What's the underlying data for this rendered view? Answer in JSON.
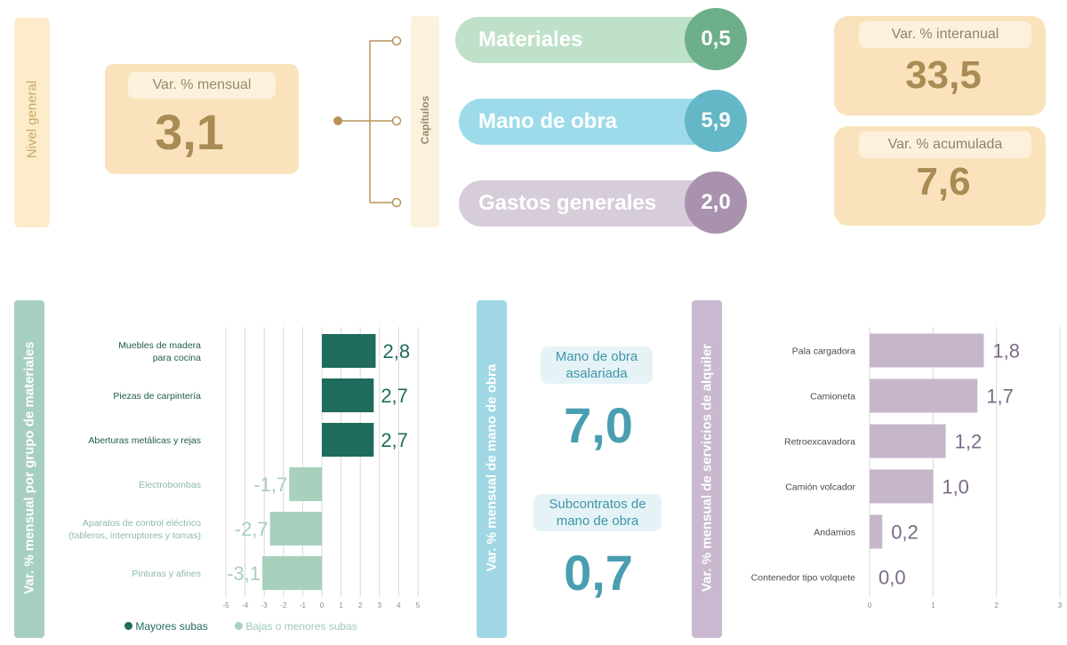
{
  "nivel_general": {
    "label": "Nivel general",
    "mensual_label": "Var. % mensual",
    "mensual_value": "3,1"
  },
  "capitulos": {
    "label": "Capítulos",
    "items": [
      {
        "label": "Materiales",
        "value": "0,5"
      },
      {
        "label": "Mano de obra",
        "value": "5,9"
      },
      {
        "label": "Gastos generales",
        "value": "2,0"
      }
    ]
  },
  "interanual": {
    "label": "Var. % interanual",
    "value": "33,5"
  },
  "acumulada": {
    "label": "Var. % acumulada",
    "value": "7,6"
  },
  "colors": {
    "materiales": "#bfe0c9",
    "materiales_circle": "#6daf8b",
    "mano_obra": "#9edbea",
    "mano_obra_circle": "#63b7c6",
    "gastos": "#d7ccd9",
    "gastos_circle": "#a892ad",
    "mayores": "#1f6b5c",
    "menores": "#a7d0bd",
    "alquiler": "#c6b6cc"
  },
  "materials_band_label": "Var. % mensual por grupo de materiales",
  "labor": {
    "band_label": "Var. % mensual de mano de obra",
    "items": [
      {
        "label": "Mano de obra asalariada",
        "value": "7,0"
      },
      {
        "label": "Subcontratos de mano de obra",
        "value": "0,7"
      }
    ]
  },
  "rental_band_label": "Var. % mensual de servicios de alquiler",
  "chart_data": [
    {
      "type": "bar",
      "orientation": "horizontal",
      "categories": [
        "Muebles de madera para cocina",
        "Piezas de carpintería",
        "Aberturas metálicas y rejas",
        "Electrobombas",
        "Aparatos de control eléctrico (tableros, interruptores y tomas)",
        "Pinturas y afines"
      ],
      "category_lines": [
        [
          "Muebles de madera",
          "para cocina"
        ],
        [
          "Piezas de carpintería"
        ],
        [
          "Aberturas metálicas y rejas"
        ],
        [
          "Electrobombas"
        ],
        [
          "Aparatos de control eléctrico",
          "(tableros, interruptores y tomas)"
        ],
        [
          "Pinturas y afines"
        ]
      ],
      "values": [
        2.8,
        2.7,
        2.7,
        -1.7,
        -2.7,
        -3.1
      ],
      "value_labels": [
        "2,8",
        "2,7",
        "2,7",
        "-1,7",
        "-2,7",
        "-3,1"
      ],
      "groups": [
        "Mayores subas",
        "Mayores subas",
        "Mayores subas",
        "Bajas o menores subas",
        "Bajas o menores subas",
        "Bajas o menores subas"
      ],
      "xlim": [
        -5,
        5
      ],
      "ticks": [
        -5,
        -4,
        -3,
        -2,
        -1,
        0,
        1,
        2,
        3,
        4,
        5
      ],
      "legend": [
        "Mayores subas",
        "Bajas o menores subas"
      ],
      "grid": true
    },
    {
      "type": "bar",
      "orientation": "horizontal",
      "categories": [
        "Pala cargadora",
        "Camioneta",
        "Retroexcavadora",
        "Camión volcador",
        "Andamios",
        "Contenedor tipo volquete"
      ],
      "values": [
        1.8,
        1.7,
        1.2,
        1.0,
        0.2,
        0.0
      ],
      "value_labels": [
        "1,8",
        "1,7",
        "1,2",
        "1,0",
        "0,2",
        "0,0"
      ],
      "xlim": [
        0,
        3
      ],
      "ticks": [
        0,
        1,
        2,
        3
      ],
      "grid": true
    }
  ]
}
